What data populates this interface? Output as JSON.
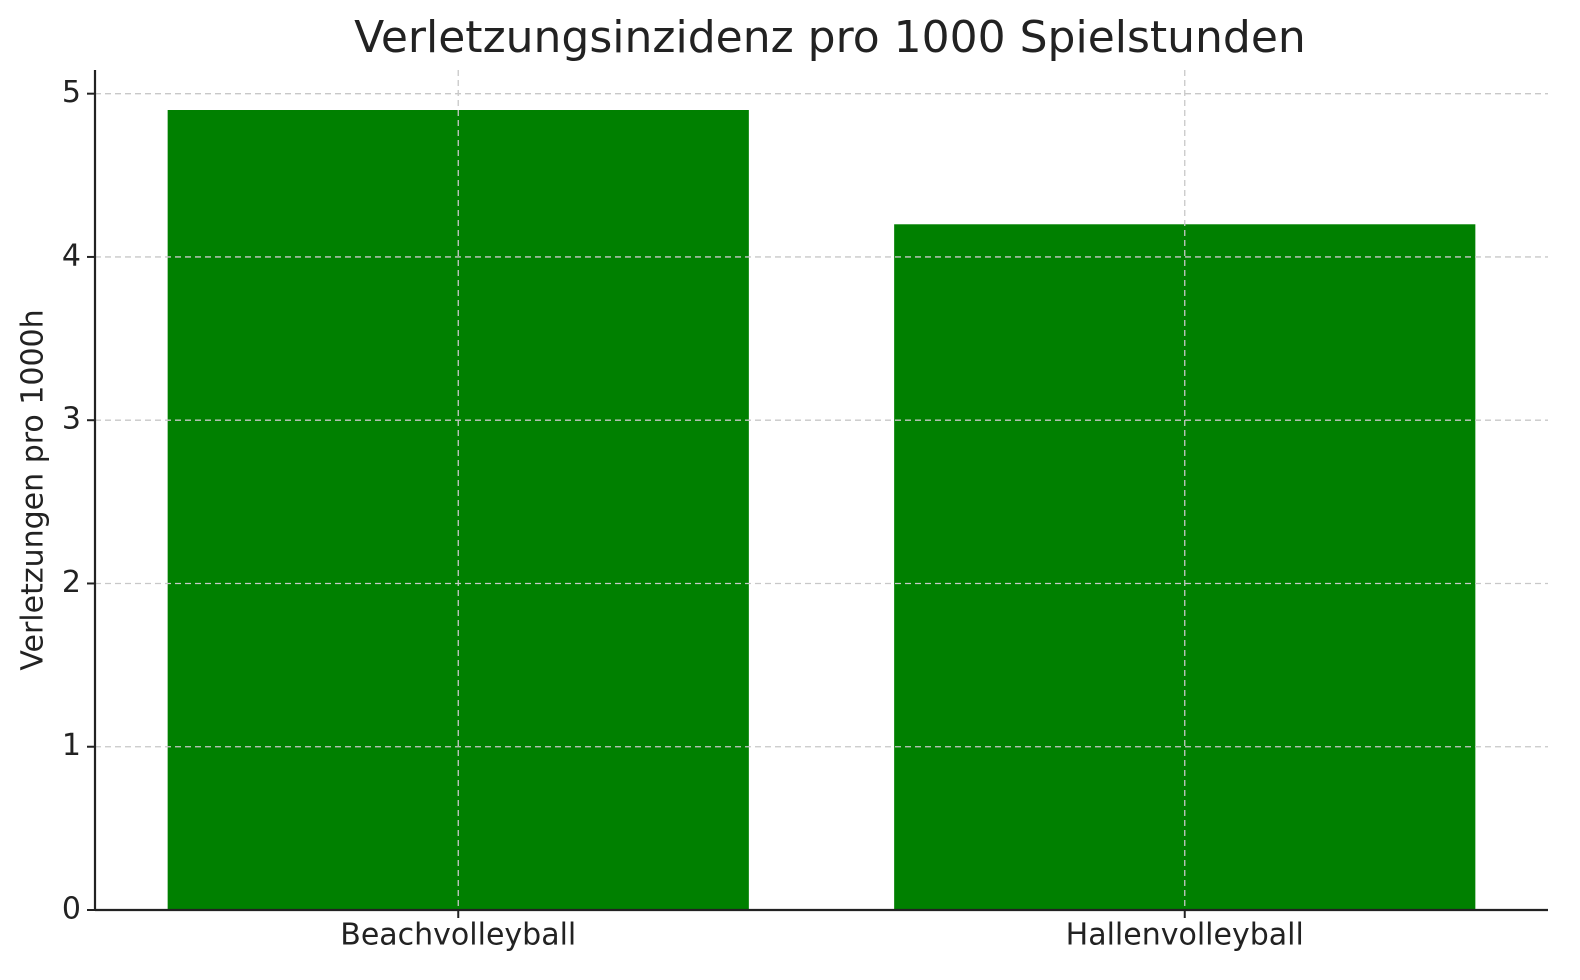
{
  "chart_data": {
    "type": "bar",
    "title": "Verletzungsinzidenz pro 1000 Spielstunden",
    "y_label": "Verletzungen pro 1000h",
    "categories": [
      "Beachvolleyball",
      "Hallenvolleyball"
    ],
    "values": [
      4.9,
      4.2
    ],
    "color": "#008000",
    "ylim": [
      0,
      5.145
    ],
    "yticks": [
      0,
      1,
      2,
      3,
      4,
      5
    ],
    "grid": true
  }
}
